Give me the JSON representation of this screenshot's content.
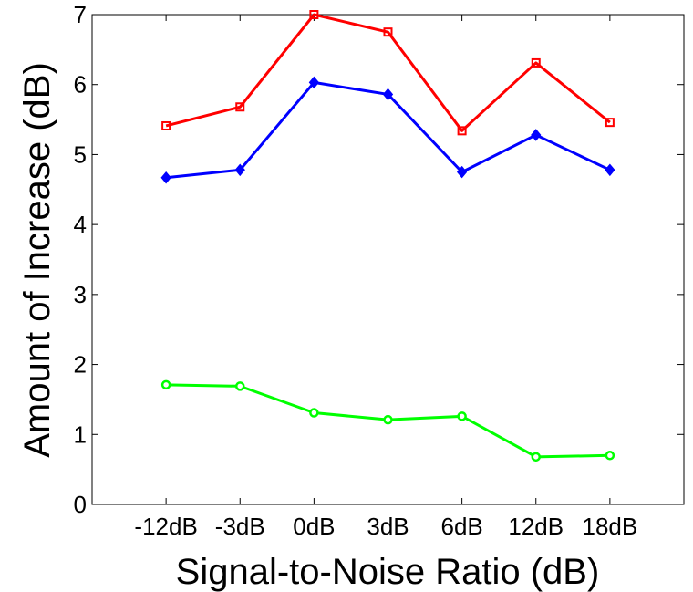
{
  "chart_data": {
    "type": "line",
    "xlabel": "Signal-to-Noise Ratio (dB)",
    "ylabel": "Amount of Increase (dB)",
    "categories": [
      "-12dB",
      "-3dB",
      "0dB",
      "3dB",
      "6dB",
      "12dB",
      "18dB"
    ],
    "ylim": [
      0,
      7
    ],
    "yticks": [
      0,
      1,
      2,
      3,
      4,
      5,
      6,
      7
    ],
    "grid": false,
    "series": [
      {
        "values": [
          5.41,
          5.68,
          7.0,
          6.75,
          5.34,
          6.31,
          5.46
        ],
        "color": "#ff0000",
        "marker": "square"
      },
      {
        "values": [
          4.67,
          4.78,
          6.03,
          5.86,
          4.75,
          5.28,
          4.78
        ],
        "color": "#0000ff",
        "marker": "diamond"
      },
      {
        "values": [
          1.71,
          1.69,
          1.31,
          1.21,
          1.26,
          0.68,
          0.7
        ],
        "color": "#00ff00",
        "marker": "circle"
      }
    ]
  }
}
